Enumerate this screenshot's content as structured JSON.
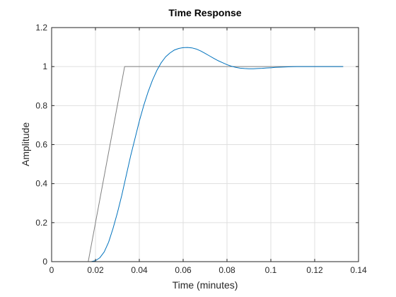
{
  "chart_data": {
    "type": "line",
    "title": "Time Response",
    "xlabel": "Time (minutes)",
    "ylabel": "Amplitude",
    "xlim": [
      0,
      0.14
    ],
    "ylim": [
      0,
      1.2
    ],
    "xticks": [
      0,
      0.02,
      0.04,
      0.06,
      0.08,
      0.1,
      0.12,
      0.14
    ],
    "xtick_labels": [
      "0",
      "0.02",
      "0.04",
      "0.06",
      "0.08",
      "0.1",
      "0.12",
      "0.14"
    ],
    "yticks": [
      0,
      0.2,
      0.4,
      0.6,
      0.8,
      1,
      1.2
    ],
    "ytick_labels": [
      "0",
      "0.2",
      "0.4",
      "0.6",
      "0.8",
      "1",
      "1.2"
    ],
    "grid": true,
    "series": [
      {
        "color": "#808080",
        "x": [
          0,
          0.0167,
          0.0333,
          0.133
        ],
        "y": [
          0,
          0,
          1,
          1
        ]
      },
      {
        "color": "#0072BD",
        "x": [
          0,
          0.018,
          0.02,
          0.022,
          0.024,
          0.026,
          0.028,
          0.03,
          0.032,
          0.034,
          0.036,
          0.038,
          0.04,
          0.042,
          0.044,
          0.046,
          0.048,
          0.05,
          0.052,
          0.054,
          0.056,
          0.058,
          0.06,
          0.062,
          0.064,
          0.066,
          0.068,
          0.07,
          0.072,
          0.074,
          0.076,
          0.078,
          0.08,
          0.082,
          0.084,
          0.086,
          0.088,
          0.09,
          0.092,
          0.094,
          0.096,
          0.098,
          0.1,
          0.102,
          0.104,
          0.106,
          0.108,
          0.11,
          0.112,
          0.114,
          0.116,
          0.118,
          0.12,
          0.122,
          0.124,
          0.126,
          0.128,
          0.13,
          0.133
        ],
        "y": [
          0,
          0,
          0.005,
          0.02,
          0.05,
          0.1,
          0.17,
          0.25,
          0.34,
          0.44,
          0.54,
          0.63,
          0.72,
          0.8,
          0.87,
          0.93,
          0.98,
          1.02,
          1.05,
          1.07,
          1.085,
          1.093,
          1.097,
          1.098,
          1.096,
          1.09,
          1.08,
          1.068,
          1.055,
          1.042,
          1.03,
          1.02,
          1.01,
          1.002,
          0.996,
          0.992,
          0.99,
          0.989,
          0.989,
          0.99,
          0.991,
          0.993,
          0.994,
          0.996,
          0.997,
          0.998,
          0.999,
          0.9995,
          1.0,
          1.0,
          1.0,
          1.0,
          1.0,
          1.0,
          1.0,
          1.0,
          1.0,
          1.0,
          1.0
        ]
      }
    ]
  },
  "colors": {
    "axis": "#262626",
    "grid": "#dfdfdf",
    "background": "#ffffff"
  }
}
